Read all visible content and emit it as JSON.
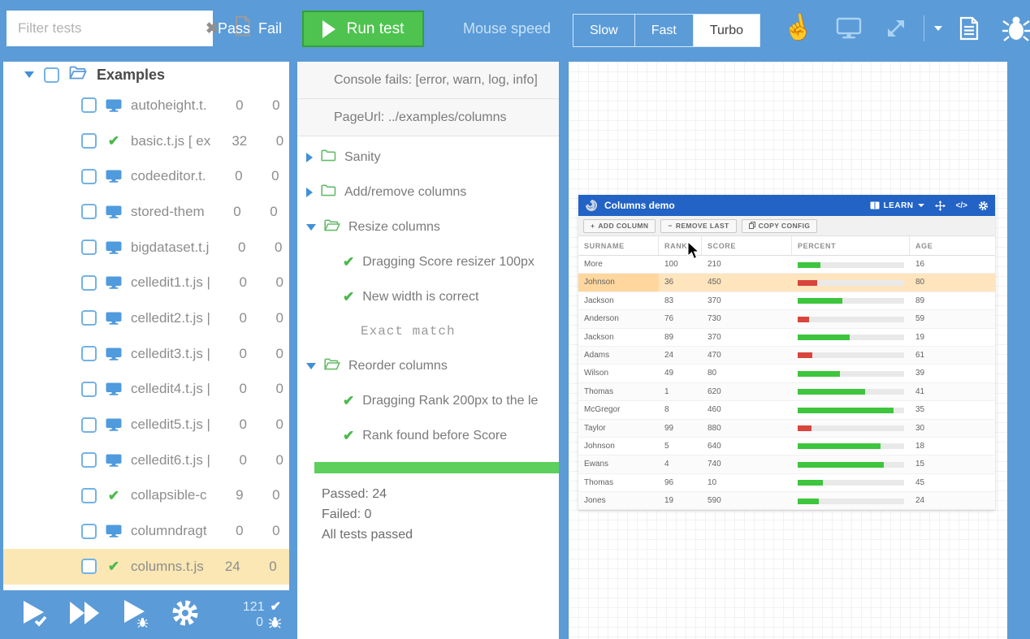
{
  "topbar": {
    "filter_placeholder": "Filter tests",
    "pass_label": "Pass",
    "fail_label": "Fail",
    "run_label": "Run test",
    "mouse_speed_label": "Mouse speed",
    "speed_options": [
      "Slow",
      "Fast",
      "Turbo"
    ],
    "speed_selected": "Turbo"
  },
  "sidebar": {
    "root": {
      "label": "Examples",
      "expanded": true
    },
    "items": [
      {
        "icon": "monitor",
        "label": "autoheight.t.",
        "passed": "0",
        "failed": "0",
        "selected": false
      },
      {
        "icon": "check",
        "label": "basic.t.js [ ex",
        "passed": "32",
        "failed": "0",
        "selected": false
      },
      {
        "icon": "monitor",
        "label": "codeeditor.t.",
        "passed": "0",
        "failed": "0",
        "selected": false
      },
      {
        "icon": "monitor",
        "label": "stored-them",
        "passed": "0",
        "failed": "0",
        "selected": false
      },
      {
        "icon": "monitor",
        "label": "bigdataset.t.j",
        "passed": "0",
        "failed": "0",
        "selected": false
      },
      {
        "icon": "monitor",
        "label": "celledit1.t.js |",
        "passed": "0",
        "failed": "0",
        "selected": false
      },
      {
        "icon": "monitor",
        "label": "celledit2.t.js |",
        "passed": "0",
        "failed": "0",
        "selected": false
      },
      {
        "icon": "monitor",
        "label": "celledit3.t.js |",
        "passed": "0",
        "failed": "0",
        "selected": false
      },
      {
        "icon": "monitor",
        "label": "celledit4.t.js |",
        "passed": "0",
        "failed": "0",
        "selected": false
      },
      {
        "icon": "monitor",
        "label": "celledit5.t.js |",
        "passed": "0",
        "failed": "0",
        "selected": false
      },
      {
        "icon": "monitor",
        "label": "celledit6.t.js |",
        "passed": "0",
        "failed": "0",
        "selected": false
      },
      {
        "icon": "check",
        "label": "collapsible-c",
        "passed": "9",
        "failed": "0",
        "selected": false
      },
      {
        "icon": "monitor",
        "label": "columndragt",
        "passed": "0",
        "failed": "0",
        "selected": false
      },
      {
        "icon": "check",
        "label": "columns.t.js",
        "passed": "24",
        "failed": "0",
        "selected": true
      }
    ],
    "toolbar": {
      "passed_total": "121",
      "failed_total": "0"
    }
  },
  "results": {
    "console_fails_label": "Console fails: [error, warn, log, info]",
    "page_url_label": "PageUrl: ../examples/columns",
    "tree": [
      {
        "kind": "folder",
        "state": "collapsed",
        "label": "Sanity"
      },
      {
        "kind": "folder",
        "state": "collapsed",
        "label": "Add/remove columns"
      },
      {
        "kind": "folder",
        "state": "expanded",
        "label": "Resize columns"
      },
      {
        "kind": "assertion",
        "label": "Dragging Score resizer 100px"
      },
      {
        "kind": "assertion",
        "label": "New width is correct"
      },
      {
        "kind": "note",
        "label": "Exact match"
      },
      {
        "kind": "folder",
        "state": "expanded",
        "label": "Reorder columns"
      },
      {
        "kind": "assertion",
        "label": "Dragging Rank 200px to the le"
      },
      {
        "kind": "assertion",
        "label": "Rank found before Score"
      }
    ],
    "passed_label": "Passed: 24",
    "failed_label": "Failed: 0",
    "status_label": "All tests passed"
  },
  "demo": {
    "title": "Columns demo",
    "learn_label": "LEARN",
    "toolbar_buttons": [
      {
        "icon": "plus",
        "label": "ADD COLUMN"
      },
      {
        "icon": "minus",
        "label": "REMOVE LAST"
      },
      {
        "icon": "copy",
        "label": "COPY CONFIG"
      }
    ],
    "columns": [
      "SURNAME",
      "RANK",
      "SCORE",
      "PERCENT",
      "AGE"
    ],
    "rows": [
      {
        "surname": "More",
        "rank": "100",
        "score": "210",
        "percent": 21,
        "bar": "green",
        "age": "16",
        "selected": false
      },
      {
        "surname": "Johnson",
        "rank": "36",
        "score": "450",
        "percent": 18,
        "bar": "red",
        "age": "80",
        "selected": true
      },
      {
        "surname": "Jackson",
        "rank": "83",
        "score": "370",
        "percent": 42,
        "bar": "green",
        "age": "89",
        "selected": false
      },
      {
        "surname": "Anderson",
        "rank": "76",
        "score": "730",
        "percent": 11,
        "bar": "red",
        "age": "59",
        "selected": false
      },
      {
        "surname": "Jackson",
        "rank": "89",
        "score": "370",
        "percent": 49,
        "bar": "green",
        "age": "19",
        "selected": false
      },
      {
        "surname": "Adams",
        "rank": "24",
        "score": "470",
        "percent": 14,
        "bar": "red",
        "age": "61",
        "selected": false
      },
      {
        "surname": "Wilson",
        "rank": "49",
        "score": "80",
        "percent": 40,
        "bar": "green",
        "age": "39",
        "selected": false
      },
      {
        "surname": "Thomas",
        "rank": "1",
        "score": "620",
        "percent": 63,
        "bar": "green",
        "age": "41",
        "selected": false
      },
      {
        "surname": "McGregor",
        "rank": "8",
        "score": "460",
        "percent": 90,
        "bar": "green",
        "age": "35",
        "selected": false
      },
      {
        "surname": "Taylor",
        "rank": "99",
        "score": "880",
        "percent": 13,
        "bar": "red",
        "age": "30",
        "selected": false
      },
      {
        "surname": "Johnson",
        "rank": "5",
        "score": "640",
        "percent": 78,
        "bar": "green",
        "age": "18",
        "selected": false
      },
      {
        "surname": "Ewans",
        "rank": "4",
        "score": "740",
        "percent": 81,
        "bar": "green",
        "age": "15",
        "selected": false
      },
      {
        "surname": "Thomas",
        "rank": "96",
        "score": "10",
        "percent": 24,
        "bar": "green",
        "age": "45",
        "selected": false
      },
      {
        "surname": "Jones",
        "rank": "19",
        "score": "590",
        "percent": 20,
        "bar": "green",
        "age": "24",
        "selected": false
      }
    ]
  },
  "colors": {
    "chrome_blue": "#5b9bd8",
    "run_green": "#4fc34f",
    "demo_header_blue": "#2263c5",
    "selected_row_orange": "#fbe7b4",
    "demo_selected_orange": "#ffe5bd",
    "bar_green": "#3dc53d",
    "bar_red": "#d8453c",
    "check_green": "#4cb94c"
  }
}
